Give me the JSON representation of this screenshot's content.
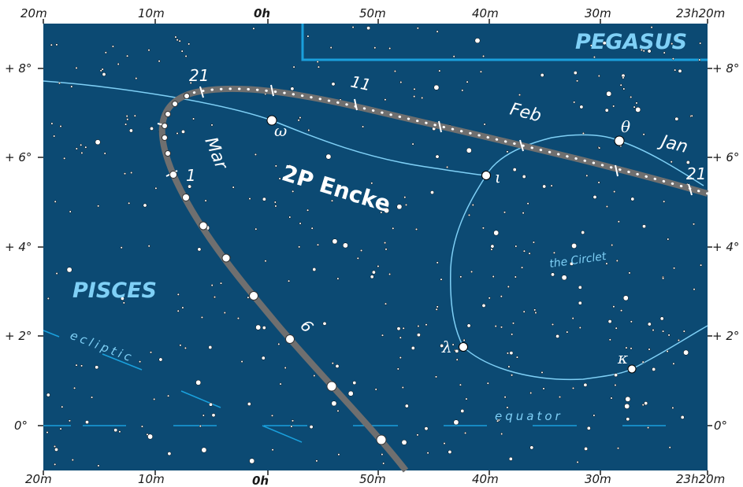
{
  "map": {
    "ra_top_labels": [
      "20m",
      "10m",
      "0h",
      "50m",
      "40m",
      "30m",
      "23h20m"
    ],
    "ra_bottom_labels": [
      "20m",
      "10m",
      "0h",
      "50m",
      "40m",
      "30m",
      "23h20m"
    ],
    "dec_labels": [
      "+ 8°",
      "+ 6°",
      "+ 4°",
      "+ 2°",
      "0°"
    ],
    "constellations": [
      "PEGASUS",
      "PISCES"
    ],
    "comet_name": "2P Encke",
    "months": [
      "Jan",
      "Feb",
      "Mar"
    ],
    "date_labels": [
      "21",
      "11",
      "21",
      "1",
      "6"
    ],
    "stars": [
      "ω",
      "ι",
      "θ",
      "λ",
      "κ"
    ],
    "asterism": "the Circlet",
    "lines": [
      "ecliptic",
      "equator"
    ],
    "colors": {
      "sky": "#0c4a73",
      "figure_lines": "#7fd0f6",
      "comet_track": "#6f6f6f",
      "boundary": "#1aa0dc"
    }
  }
}
